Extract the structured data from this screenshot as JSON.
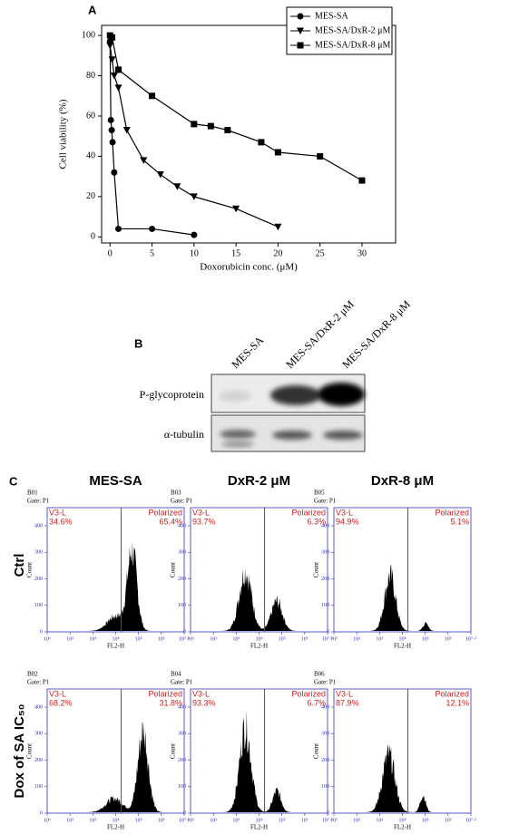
{
  "chart_data": {
    "type": "line",
    "label": "A",
    "xlabel": "Doxorubicin conc. (μM)",
    "ylabel": "Cell viability (%)",
    "xlim": [
      -1,
      34
    ],
    "ylim": [
      -3,
      105
    ],
    "xticks": [
      0,
      5,
      10,
      15,
      20,
      25,
      30
    ],
    "yticks": [
      0,
      20,
      40,
      60,
      80,
      100
    ],
    "legend": "upper right",
    "series": [
      {
        "name": "MES-SA",
        "color": "#000000",
        "marker": "circle",
        "x": [
          0,
          0.1,
          0.2,
          0.3,
          0.5,
          1,
          5,
          10
        ],
        "values": [
          97,
          58,
          53,
          47,
          32,
          4,
          4,
          1
        ]
      },
      {
        "name": "MES-SA/DxR-2 μM",
        "color": "#000000",
        "marker": "triangle",
        "x": [
          0,
          0.25,
          0.5,
          1,
          2,
          4,
          6,
          8,
          10,
          15,
          20
        ],
        "values": [
          95,
          88,
          80,
          74,
          53,
          38,
          31,
          25,
          20,
          14,
          5
        ]
      },
      {
        "name": "MES-SA/DxR-8 μM",
        "color": "#000000",
        "marker": "square",
        "x": [
          0,
          0.25,
          1,
          5,
          10,
          12,
          14,
          18,
          20,
          25,
          30
        ],
        "values": [
          100,
          99,
          83,
          70,
          56,
          55,
          53,
          47,
          42,
          40,
          28
        ]
      }
    ]
  },
  "panel_b": {
    "label": "B",
    "lanes": [
      "MES-SA",
      "MES-SA/DxR-2 μM",
      "MES-SA/DxR-8 μM"
    ],
    "rows": [
      "P-glycoprotein",
      "α-tubulin"
    ]
  },
  "panel_c": {
    "label": "C",
    "columns": [
      "MES-SA",
      "DxR-2 μM",
      "DxR-8 μM"
    ],
    "rows": [
      "Ctrl",
      "Dox of SA IC₅₀"
    ],
    "gate": "Gate: P1",
    "left_gate": "V3-L",
    "right_gate": "Polarized",
    "y_label": "Count",
    "x_label": "FL2-H",
    "yticks": [
      "0",
      "100",
      "200",
      "300",
      "400"
    ],
    "xticks": [
      "10¹",
      "10²",
      "10³",
      "10⁴",
      "10⁵",
      "10⁶",
      "10⁷·²"
    ],
    "panels": [
      {
        "id": "B01",
        "left_pct": "34.6%",
        "right_pct": "65.4%"
      },
      {
        "id": "B03",
        "left_pct": "93.7%",
        "right_pct": "6.3%"
      },
      {
        "id": "B05",
        "left_pct": "94.9%",
        "right_pct": "5.1%"
      },
      {
        "id": "B02",
        "left_pct": "68.2%",
        "right_pct": "31.8%"
      },
      {
        "id": "B04",
        "left_pct": "93.3%",
        "right_pct": "6.7%"
      },
      {
        "id": "B06",
        "left_pct": "87.9%",
        "right_pct": "12.1%"
      }
    ]
  }
}
